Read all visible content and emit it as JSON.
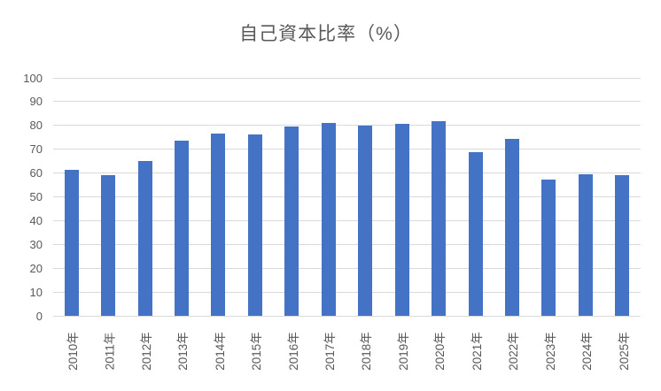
{
  "chart_data": {
    "type": "bar",
    "title": "自己資本比率（%）",
    "categories": [
      "2010年",
      "2011年",
      "2012年",
      "2013年",
      "2014年",
      "2015年",
      "2016年",
      "2017年",
      "2018年",
      "2019年",
      "2020年",
      "2021年",
      "2022年",
      "2023年",
      "2024年",
      "2025年"
    ],
    "values": [
      61.3,
      59.0,
      65.2,
      73.6,
      76.7,
      76.2,
      79.6,
      80.9,
      80.0,
      80.7,
      81.8,
      68.7,
      74.4,
      57.1,
      59.6,
      59.0
    ],
    "xlabel": "",
    "ylabel": "",
    "ylim": [
      0,
      100
    ],
    "ytick_step": 10,
    "yticks": [
      0,
      10,
      20,
      30,
      40,
      50,
      60,
      70,
      80,
      90,
      100
    ],
    "grid": true,
    "legend": "none"
  },
  "colors": {
    "bar": "#4472C4",
    "gridline": "#D9D9D9",
    "text": "#595959",
    "background": "#FFFFFF"
  }
}
